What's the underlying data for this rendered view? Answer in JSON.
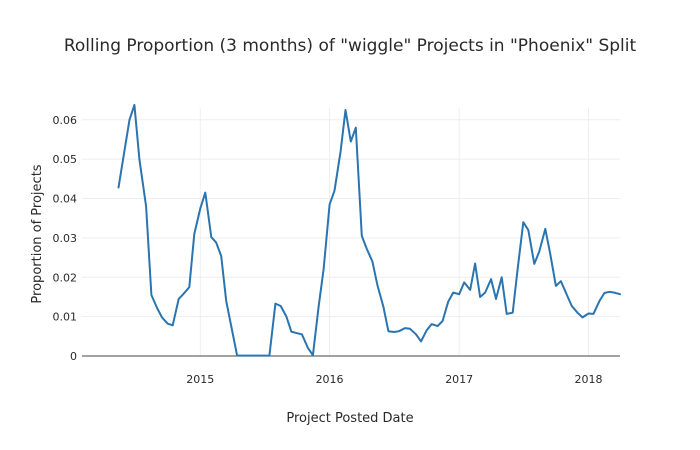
{
  "chart_data": {
    "type": "line",
    "title": "Rolling Proportion (3 months) of \"wiggle\" Projects in \"Phoenix\" Split",
    "xlabel": "Project Posted Date",
    "ylabel": "Proportion of Projects",
    "ylim": [
      0,
      0.063
    ],
    "xlim": [
      "2014-02-01",
      "2018-03-31"
    ],
    "grid": true,
    "line_color": "#2a74b0",
    "y_ticks": [
      {
        "value": 0,
        "label": "0"
      },
      {
        "value": 0.01,
        "label": "0.01"
      },
      {
        "value": 0.02,
        "label": "0.02"
      },
      {
        "value": 0.03,
        "label": "0.03"
      },
      {
        "value": 0.04,
        "label": "0.04"
      },
      {
        "value": 0.05,
        "label": "0.05"
      },
      {
        "value": 0.06,
        "label": "0.06"
      }
    ],
    "x_ticks": [
      {
        "value": "2015-01-01",
        "label": "2015"
      },
      {
        "value": "2016-01-01",
        "label": "2016"
      },
      {
        "value": "2017-01-01",
        "label": "2017"
      },
      {
        "value": "2018-01-01",
        "label": "2018"
      }
    ],
    "series": [
      {
        "x": [
          "2014-05-15",
          "2014-06-15",
          "2014-06-29",
          "2014-07-13",
          "2014-08-01",
          "2014-08-16",
          "2014-09-01",
          "2014-09-15",
          "2014-10-01",
          "2014-10-15",
          "2014-11-01",
          "2014-11-15",
          "2014-12-01",
          "2014-12-15",
          "2015-01-01",
          "2015-01-15",
          "2015-02-01",
          "2015-02-15",
          "2015-03-01",
          "2015-03-15",
          "2015-04-15",
          "2015-07-15",
          "2015-08-01",
          "2015-08-16",
          "2015-09-01",
          "2015-09-15",
          "2015-10-01",
          "2015-10-15",
          "2015-11-01",
          "2015-11-15",
          "2015-12-01",
          "2015-12-15",
          "2016-01-01",
          "2016-01-15",
          "2016-02-01",
          "2016-02-15",
          "2016-03-01",
          "2016-03-15",
          "2016-04-01",
          "2016-04-15",
          "2016-05-01",
          "2016-05-15",
          "2016-06-01",
          "2016-06-15",
          "2016-07-01",
          "2016-07-15",
          "2016-08-01",
          "2016-08-15",
          "2016-09-01",
          "2016-09-15",
          "2016-10-01",
          "2016-10-15",
          "2016-11-01",
          "2016-11-15",
          "2016-12-01",
          "2016-12-15",
          "2017-01-01",
          "2017-01-15",
          "2017-02-01",
          "2017-02-15",
          "2017-03-01",
          "2017-03-15",
          "2017-04-01",
          "2017-04-15",
          "2017-05-01",
          "2017-05-15",
          "2017-06-01",
          "2017-06-15",
          "2017-07-01",
          "2017-07-15",
          "2017-08-01",
          "2017-08-15",
          "2017-09-01",
          "2017-09-15",
          "2017-10-01",
          "2017-10-15",
          "2017-11-01",
          "2017-11-15",
          "2017-12-01",
          "2017-12-15",
          "2018-01-01",
          "2018-01-15",
          "2018-02-01",
          "2018-02-15",
          "2018-03-01",
          "2018-03-15",
          "2018-03-31"
        ],
        "y": [
          0.0428,
          0.06,
          0.0638,
          0.05,
          0.038,
          0.0155,
          0.0122,
          0.0098,
          0.0082,
          0.0078,
          0.0145,
          0.0158,
          0.0175,
          0.031,
          0.0375,
          0.0415,
          0.0302,
          0.0288,
          0.0254,
          0.014,
          0.0001,
          0.0001,
          0.0133,
          0.0127,
          0.01,
          0.0062,
          0.0058,
          0.0055,
          0.002,
          0.0002,
          0.0125,
          0.022,
          0.0385,
          0.042,
          0.052,
          0.0625,
          0.0545,
          0.058,
          0.0305,
          0.0272,
          0.024,
          0.018,
          0.0125,
          0.0063,
          0.0061,
          0.0063,
          0.0071,
          0.0069,
          0.0055,
          0.0037,
          0.0065,
          0.0081,
          0.0076,
          0.0089,
          0.0138,
          0.0161,
          0.0157,
          0.0187,
          0.0168,
          0.0235,
          0.015,
          0.0161,
          0.0195,
          0.0145,
          0.02,
          0.0107,
          0.011,
          0.022,
          0.034,
          0.032,
          0.0234,
          0.0265,
          0.0323,
          0.026,
          0.0178,
          0.019,
          0.0155,
          0.0127,
          0.011,
          0.0098,
          0.0108,
          0.0107,
          0.014,
          0.016,
          0.0163,
          0.0161,
          0.0157
        ]
      }
    ]
  }
}
